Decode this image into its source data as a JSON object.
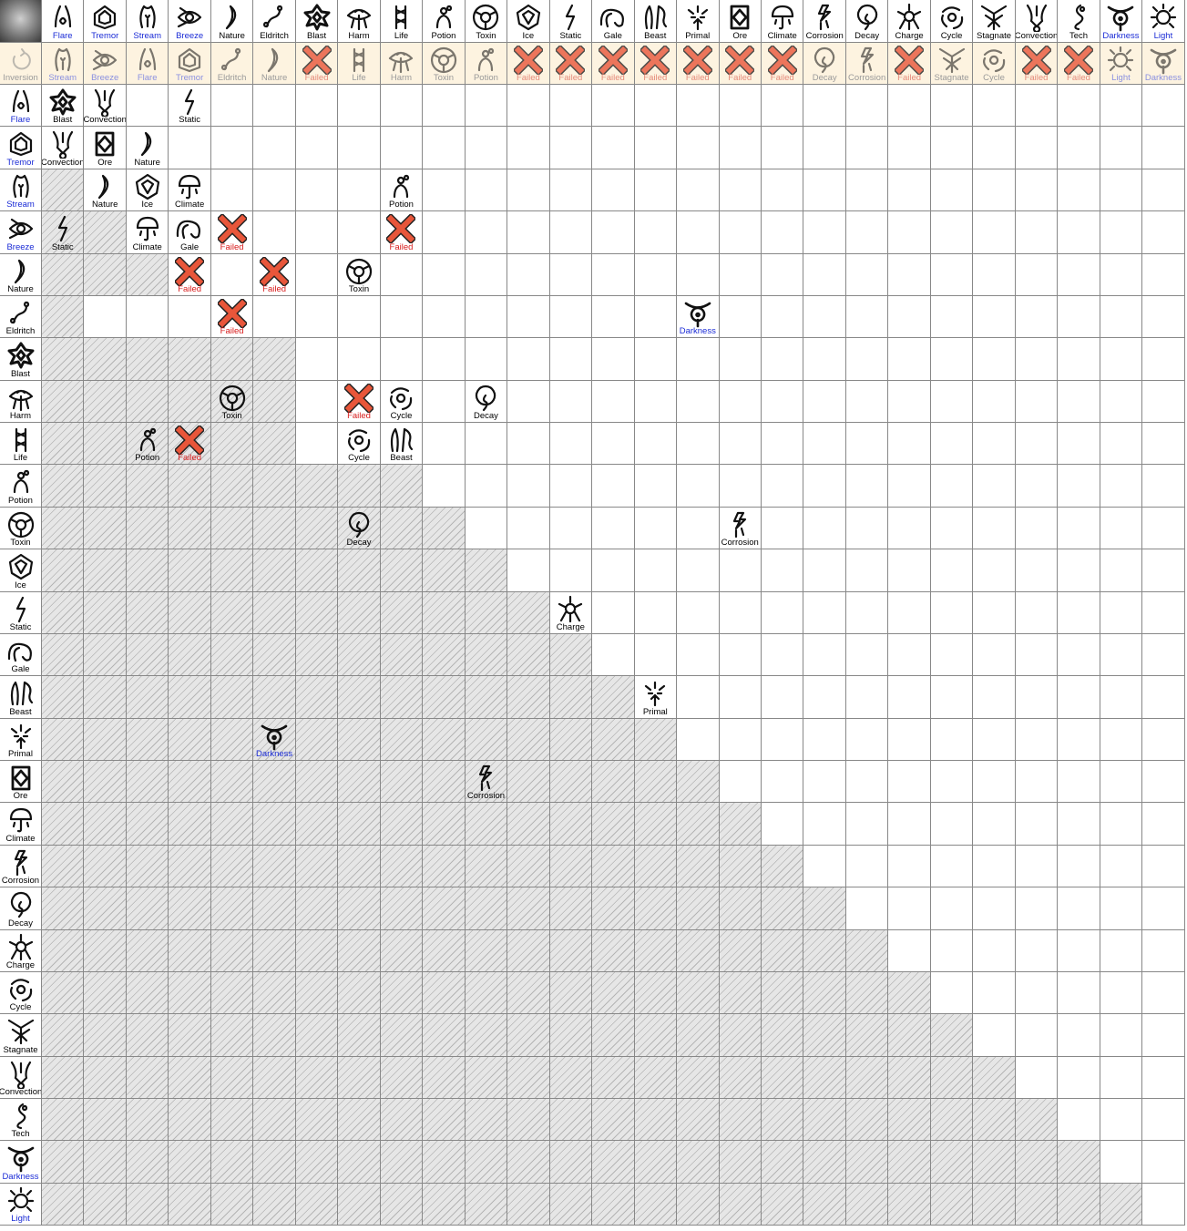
{
  "elements": [
    "Flare",
    "Tremor",
    "Stream",
    "Breeze",
    "Nature",
    "Eldritch",
    "Blast",
    "Harm",
    "Life",
    "Potion",
    "Toxin",
    "Ice",
    "Static",
    "Gale",
    "Beast",
    "Primal",
    "Ore",
    "Climate",
    "Corrosion",
    "Decay",
    "Charge",
    "Cycle",
    "Stagnate",
    "Convection",
    "Tech",
    "Darkness",
    "Light"
  ],
  "blue_labels": [
    "Flare",
    "Tremor",
    "Stream",
    "Breeze",
    "Darkness",
    "Light"
  ],
  "inversion_label": "Inversion",
  "inversion_row": [
    "Stream",
    "Breeze",
    "Flare",
    "Tremor",
    "Eldritch",
    "Nature",
    "Failed",
    "Life",
    "Harm",
    "Toxin",
    "Potion",
    "Failed",
    "Failed",
    "Failed",
    "Failed",
    "Failed",
    "Failed",
    "Failed",
    "Decay",
    "Corrosion",
    "Failed",
    "Stagnate",
    "Cycle",
    "Failed",
    "Failed",
    "Light",
    "Darkness"
  ],
  "failed_label": "Failed",
  "combos": [
    {
      "row": 0,
      "col": 0,
      "result": "Blast"
    },
    {
      "row": 0,
      "col": 1,
      "result": "Convection"
    },
    {
      "row": 0,
      "col": 3,
      "result": "Static"
    },
    {
      "row": 1,
      "col": 0,
      "result": "Convection"
    },
    {
      "row": 1,
      "col": 1,
      "result": "Ore"
    },
    {
      "row": 1,
      "col": 2,
      "result": "Nature"
    },
    {
      "row": 2,
      "col": 1,
      "result": "Nature"
    },
    {
      "row": 2,
      "col": 2,
      "result": "Ice"
    },
    {
      "row": 2,
      "col": 3,
      "result": "Climate"
    },
    {
      "row": 2,
      "col": 8,
      "result": "Potion"
    },
    {
      "row": 3,
      "col": 0,
      "result": "Static"
    },
    {
      "row": 3,
      "col": 2,
      "result": "Climate"
    },
    {
      "row": 3,
      "col": 3,
      "result": "Gale"
    },
    {
      "row": 3,
      "col": 4,
      "result": "Failed"
    },
    {
      "row": 3,
      "col": 8,
      "result": "Failed"
    },
    {
      "row": 4,
      "col": 3,
      "result": "Failed"
    },
    {
      "row": 4,
      "col": 5,
      "result": "Failed"
    },
    {
      "row": 4,
      "col": 7,
      "result": "Toxin"
    },
    {
      "row": 5,
      "col": 4,
      "result": "Failed"
    },
    {
      "row": 5,
      "col": 15,
      "result": "Darkness"
    },
    {
      "row": 7,
      "col": 4,
      "result": "Toxin"
    },
    {
      "row": 7,
      "col": 7,
      "result": "Failed"
    },
    {
      "row": 7,
      "col": 8,
      "result": "Cycle"
    },
    {
      "row": 7,
      "col": 10,
      "result": "Decay"
    },
    {
      "row": 8,
      "col": 2,
      "result": "Potion"
    },
    {
      "row": 8,
      "col": 3,
      "result": "Failed"
    },
    {
      "row": 8,
      "col": 7,
      "result": "Cycle"
    },
    {
      "row": 8,
      "col": 8,
      "result": "Beast"
    },
    {
      "row": 10,
      "col": 7,
      "result": "Decay"
    },
    {
      "row": 10,
      "col": 16,
      "result": "Corrosion"
    },
    {
      "row": 12,
      "col": 12,
      "result": "Charge"
    },
    {
      "row": 14,
      "col": 14,
      "result": "Primal"
    },
    {
      "row": 15,
      "col": 5,
      "result": "Darkness"
    },
    {
      "row": 16,
      "col": 10,
      "result": "Corrosion"
    }
  ],
  "hatch_start": [
    99,
    99,
    1,
    2,
    3,
    1,
    6,
    6,
    6,
    9,
    10,
    11,
    12,
    13,
    14,
    15,
    16,
    17,
    18,
    19,
    20,
    21,
    22,
    23,
    24,
    25,
    26
  ],
  "icons": {
    "Flare": "flare-icon",
    "Tremor": "tremor-icon",
    "Stream": "stream-icon",
    "Breeze": "breeze-icon",
    "Nature": "nature-icon",
    "Eldritch": "eldritch-icon",
    "Blast": "blast-icon",
    "Harm": "harm-icon",
    "Life": "life-icon",
    "Potion": "potion-icon",
    "Toxin": "toxin-icon",
    "Ice": "ice-icon",
    "Static": "static-icon",
    "Gale": "gale-icon",
    "Beast": "beast-icon",
    "Primal": "primal-icon",
    "Ore": "ore-icon",
    "Climate": "climate-icon",
    "Corrosion": "corrosion-icon",
    "Decay": "decay-icon",
    "Charge": "charge-icon",
    "Cycle": "cycle-icon",
    "Stagnate": "stagnate-icon",
    "Convection": "convection-icon",
    "Tech": "tech-icon",
    "Darkness": "darkness-icon",
    "Light": "light-icon",
    "Failed": "failed-icon",
    "Inversion": "inversion-icon"
  }
}
